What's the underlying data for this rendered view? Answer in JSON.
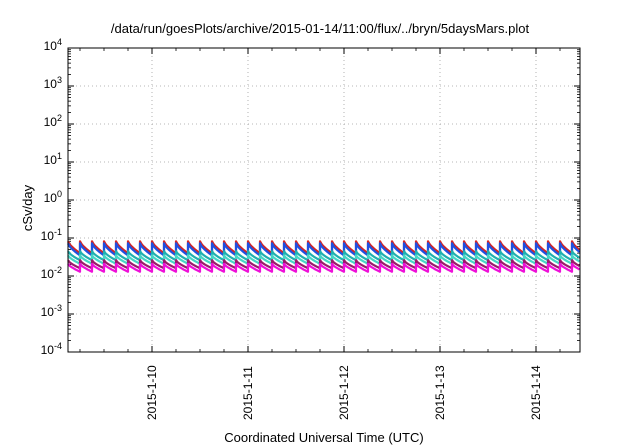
{
  "chart_data": {
    "type": "line",
    "title": "/data/run/goesPlots/archive/2015-01-14/11:00/flux/../bryn/5daysMars.plot",
    "xlabel": "Coordinated Universal Time (UTC)",
    "ylabel": "cSv/day",
    "yscale": "log",
    "ylim": [
      0.0001,
      10000
    ],
    "y_ticks": [
      {
        "base": "10",
        "exp": "4"
      },
      {
        "base": "10",
        "exp": "3"
      },
      {
        "base": "10",
        "exp": "2"
      },
      {
        "base": "10",
        "exp": "1"
      },
      {
        "base": "10",
        "exp": "0"
      },
      {
        "base": "10",
        "exp": "-1"
      },
      {
        "base": "10",
        "exp": "-2"
      },
      {
        "base": "10",
        "exp": "-3"
      },
      {
        "base": "10",
        "exp": "-4"
      }
    ],
    "x_start": "2015-01-09T03:00",
    "x_end": "2015-01-14T11:00",
    "x_ticks": [
      "2015-1-10",
      "2015-1-11",
      "2015-1-12",
      "2015-1-13",
      "2015-1-14"
    ],
    "grid": true,
    "sawtooth_period_hours": 3,
    "series": [
      {
        "color": "#d62424",
        "peak": 0.082,
        "trough": 0.04
      },
      {
        "color": "#2050e0",
        "peak": 0.072,
        "trough": 0.035
      },
      {
        "color": "#20b0b0",
        "peak": 0.045,
        "trough": 0.026
      },
      {
        "color": "#46d6c6",
        "peak": 0.035,
        "trough": 0.021
      },
      {
        "color": "#9b1a6a",
        "peak": 0.026,
        "trough": 0.016
      },
      {
        "color": "#ee10d8",
        "peak": 0.021,
        "trough": 0.013
      }
    ]
  }
}
